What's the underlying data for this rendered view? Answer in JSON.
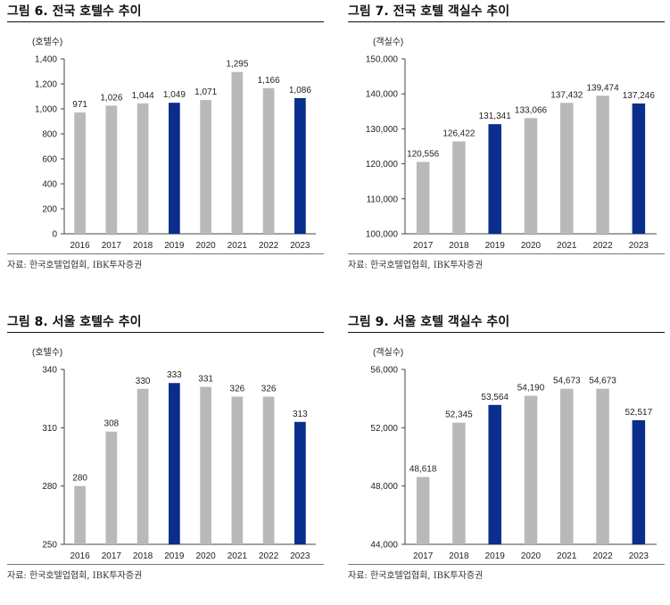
{
  "colors": {
    "gray_bar": "#b9b9b9",
    "highlight_bar": "#0a2e8c",
    "axis": "#444444"
  },
  "chart_data": [
    {
      "type": "bar",
      "title": "그림 6. 전국 호텔수 추이",
      "ylabel": "(호텔수)",
      "xlabel": "",
      "categories": [
        "2016",
        "2017",
        "2018",
        "2019",
        "2020",
        "2021",
        "2022",
        "2023"
      ],
      "values": [
        971,
        1026,
        1044,
        1049,
        1071,
        1295,
        1166,
        1086
      ],
      "value_labels": [
        "971",
        "1,026",
        "1,044",
        "1,049",
        "1,071",
        "1,295",
        "1,166",
        "1,086"
      ],
      "highlight": [
        "2019",
        "2023"
      ],
      "ylim": [
        0,
        1400
      ],
      "yticks": [
        0,
        200,
        400,
        600,
        800,
        1000,
        1200,
        1400
      ],
      "ytick_labels": [
        "0",
        "200",
        "400",
        "600",
        "800",
        "1,000",
        "1,200",
        "1,400"
      ],
      "grid": false,
      "source": "자료: 한국호텔업협회, IBK투자증권"
    },
    {
      "type": "bar",
      "title": "그림 7. 전국 호텔 객실수 추이",
      "ylabel": "(객실수)",
      "xlabel": "",
      "categories": [
        "2017",
        "2018",
        "2019",
        "2020",
        "2021",
        "2022",
        "2023"
      ],
      "values": [
        120556,
        126422,
        131341,
        133066,
        137432,
        139474,
        137246
      ],
      "value_labels": [
        "120,556",
        "126,422",
        "131,341",
        "133,066",
        "137,432",
        "139,474",
        "137,246"
      ],
      "highlight": [
        "2019",
        "2023"
      ],
      "ylim": [
        100000,
        150000
      ],
      "yticks": [
        100000,
        110000,
        120000,
        130000,
        140000,
        150000
      ],
      "ytick_labels": [
        "100,000",
        "110,000",
        "120,000",
        "130,000",
        "140,000",
        "150,000"
      ],
      "grid": false,
      "source": "자료: 한국호텔업협회, IBK투자증권"
    },
    {
      "type": "bar",
      "title": "그림 8. 서울 호텔수 추이",
      "ylabel": "(호텔수)",
      "xlabel": "",
      "categories": [
        "2016",
        "2017",
        "2018",
        "2019",
        "2020",
        "2021",
        "2022",
        "2023"
      ],
      "values": [
        280,
        308,
        330,
        333,
        331,
        326,
        326,
        313
      ],
      "value_labels": [
        "280",
        "308",
        "330",
        "333",
        "331",
        "326",
        "326",
        "313"
      ],
      "highlight": [
        "2019",
        "2023"
      ],
      "ylim": [
        250,
        340
      ],
      "yticks": [
        250,
        280,
        310,
        340
      ],
      "ytick_labels": [
        "250",
        "280",
        "310",
        "340"
      ],
      "grid": false,
      "source": "자료: 한국호텔업협회, IBK투자증권"
    },
    {
      "type": "bar",
      "title": "그림 9. 서울 호텔 객실수 추이",
      "ylabel": "(객실수)",
      "xlabel": "",
      "categories": [
        "2017",
        "2018",
        "2019",
        "2020",
        "2021",
        "2022",
        "2023"
      ],
      "values": [
        48618,
        52345,
        53564,
        54190,
        54673,
        54673,
        52517
      ],
      "value_labels": [
        "48,618",
        "52,345",
        "53,564",
        "54,190",
        "54,673",
        "54,673",
        "52,517"
      ],
      "highlight": [
        "2019",
        "2023"
      ],
      "ylim": [
        44000,
        56000
      ],
      "yticks": [
        44000,
        48000,
        52000,
        56000
      ],
      "ytick_labels": [
        "44,000",
        "48,000",
        "52,000",
        "56,000"
      ],
      "grid": false,
      "source": "자료: 한국호텔업협회, IBK투자증권"
    }
  ]
}
